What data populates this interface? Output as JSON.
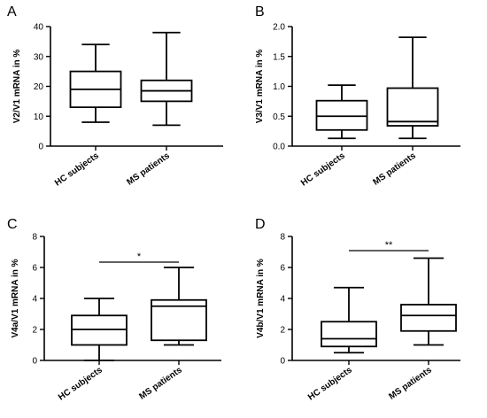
{
  "chart_data": [
    {
      "type": "boxplot",
      "panel_label": "A",
      "ylabel": "V2/V1 mRNA in %",
      "categories": [
        "HC subjects",
        "MS patients"
      ],
      "ylim": [
        0,
        40
      ],
      "yticks": [
        0,
        10,
        20,
        30,
        40
      ],
      "boxes": [
        {
          "min": 8,
          "q1": 13,
          "median": 19,
          "q3": 25,
          "max": 34
        },
        {
          "min": 7,
          "q1": 15,
          "median": 18.5,
          "q3": 22,
          "max": 38
        }
      ],
      "significance": ""
    },
    {
      "type": "boxplot",
      "panel_label": "B",
      "ylabel": "V3/V1 mRNA in %",
      "categories": [
        "HC subjects",
        "MS patients"
      ],
      "ylim": [
        0,
        2.0
      ],
      "yticks": [
        "0.0",
        "0.5",
        "1.0",
        "1.5",
        "2.0"
      ],
      "boxes": [
        {
          "min": 0.13,
          "q1": 0.27,
          "median": 0.5,
          "q3": 0.76,
          "max": 1.02
        },
        {
          "min": 0.13,
          "q1": 0.34,
          "median": 0.41,
          "q3": 0.97,
          "max": 1.82
        }
      ],
      "significance": ""
    },
    {
      "type": "boxplot",
      "panel_label": "C",
      "ylabel": "V4a/V1 mRNA in %",
      "categories": [
        "HC subjects",
        "MS patients"
      ],
      "ylim": [
        0,
        8
      ],
      "yticks": [
        0,
        2,
        4,
        6,
        8
      ],
      "boxes": [
        {
          "min": 0,
          "q1": 1.0,
          "median": 2.0,
          "q3": 2.9,
          "max": 4.0
        },
        {
          "min": 1.0,
          "q1": 1.3,
          "median": 3.5,
          "q3": 3.9,
          "max": 6.0
        }
      ],
      "significance": "*"
    },
    {
      "type": "boxplot",
      "panel_label": "D",
      "ylabel": "V4b/V1 mRNA in %",
      "categories": [
        "HC subjects",
        "MS patients"
      ],
      "ylim": [
        0,
        8
      ],
      "yticks": [
        0,
        2,
        4,
        6,
        8
      ],
      "boxes": [
        {
          "min": 0.5,
          "q1": 0.9,
          "median": 1.4,
          "q3": 2.5,
          "max": 4.7
        },
        {
          "min": 1.0,
          "q1": 1.9,
          "median": 2.9,
          "q3": 3.6,
          "max": 6.6
        }
      ],
      "significance": "**"
    }
  ]
}
